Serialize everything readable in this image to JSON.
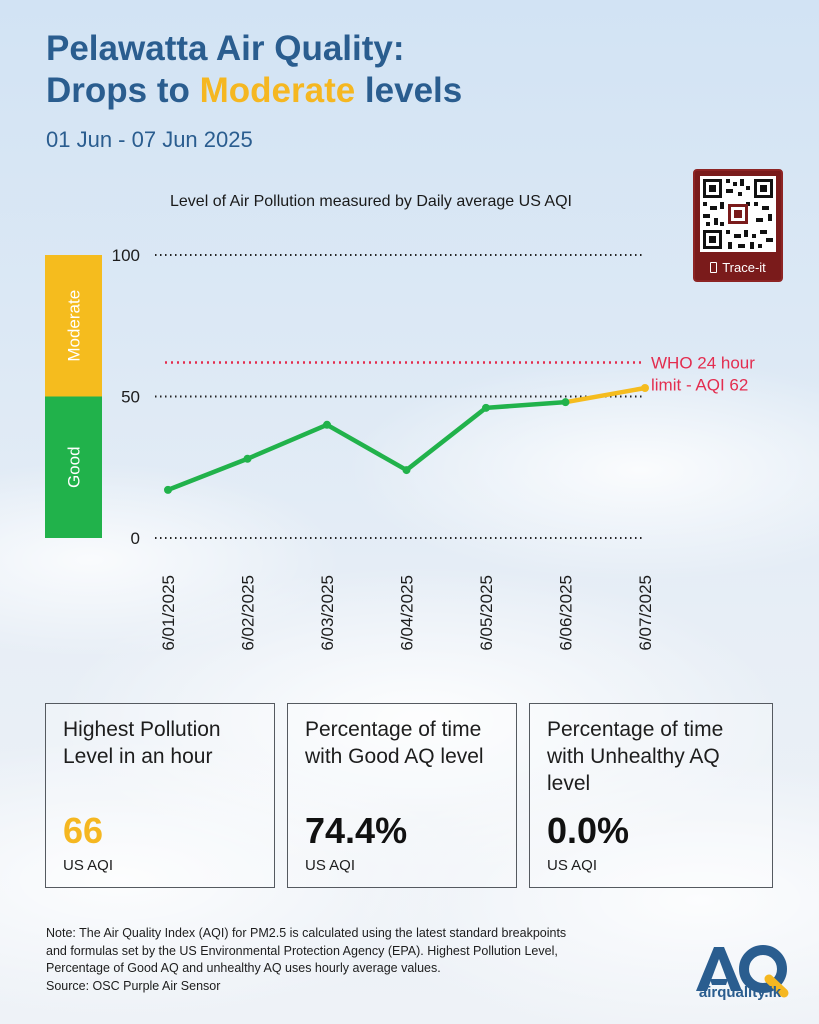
{
  "header": {
    "title_line1": "Pelawatta Air Quality:",
    "title_line2_pre": "Drops to ",
    "title_line2_highlight": "Moderate",
    "title_line2_post": " levels",
    "subtitle": "01 Jun - 07 Jun 2025"
  },
  "qr_badge": {
    "label": "Trace-it"
  },
  "chart_data": {
    "type": "line",
    "title": "Level of Air Pollution measured by Daily average US AQI",
    "categories": [
      "6/01/2025",
      "6/02/2025",
      "6/03/2025",
      "6/04/2025",
      "6/05/2025",
      "6/06/2025",
      "6/07/2025"
    ],
    "series": [
      {
        "values": [
          17,
          28,
          40,
          24,
          46,
          48,
          53
        ]
      }
    ],
    "ylim": [
      0,
      100
    ],
    "yticks": [
      0,
      50,
      100
    ],
    "bands": [
      {
        "label": "Good",
        "from": 0,
        "to": 50,
        "color": "#21b24b"
      },
      {
        "label": "Moderate",
        "from": 50,
        "to": 100,
        "color": "#f5bc1e"
      }
    ],
    "reference_line": {
      "value": 62,
      "label_line1": "WHO 24 hour",
      "label_line2": "limit - AQI 62",
      "color": "#e32d4f"
    },
    "line_colors": {
      "good": "#21b24b",
      "moderate": "#f5bc1e"
    },
    "grid": "dotted at ticks"
  },
  "stats": [
    {
      "title": "Highest Pollution Level in an hour",
      "value": "66",
      "unit": "US AQI",
      "value_color": "#f5b721"
    },
    {
      "title": "Percentage of time with Good AQ level",
      "value": "74.4%",
      "unit": "US AQI",
      "value_color": "#111111"
    },
    {
      "title": "Percentage of time with Unhealthy AQ level",
      "value": "0.0%",
      "unit": "US AQI",
      "value_color": "#111111"
    }
  ],
  "footer": {
    "note_line1": "Note: The Air Quality Index (AQI) for PM2.5 is calculated using the latest standard breakpoints",
    "note_line2": "and formulas set by the US Environmental Protection Agency (EPA). Highest Pollution Level,",
    "note_line3": "Percentage of Good AQ and unhealthy AQ uses hourly average values.",
    "note_line4": "Source: OSC Purple Air Sensor",
    "logo_text": "airquality.lk"
  }
}
